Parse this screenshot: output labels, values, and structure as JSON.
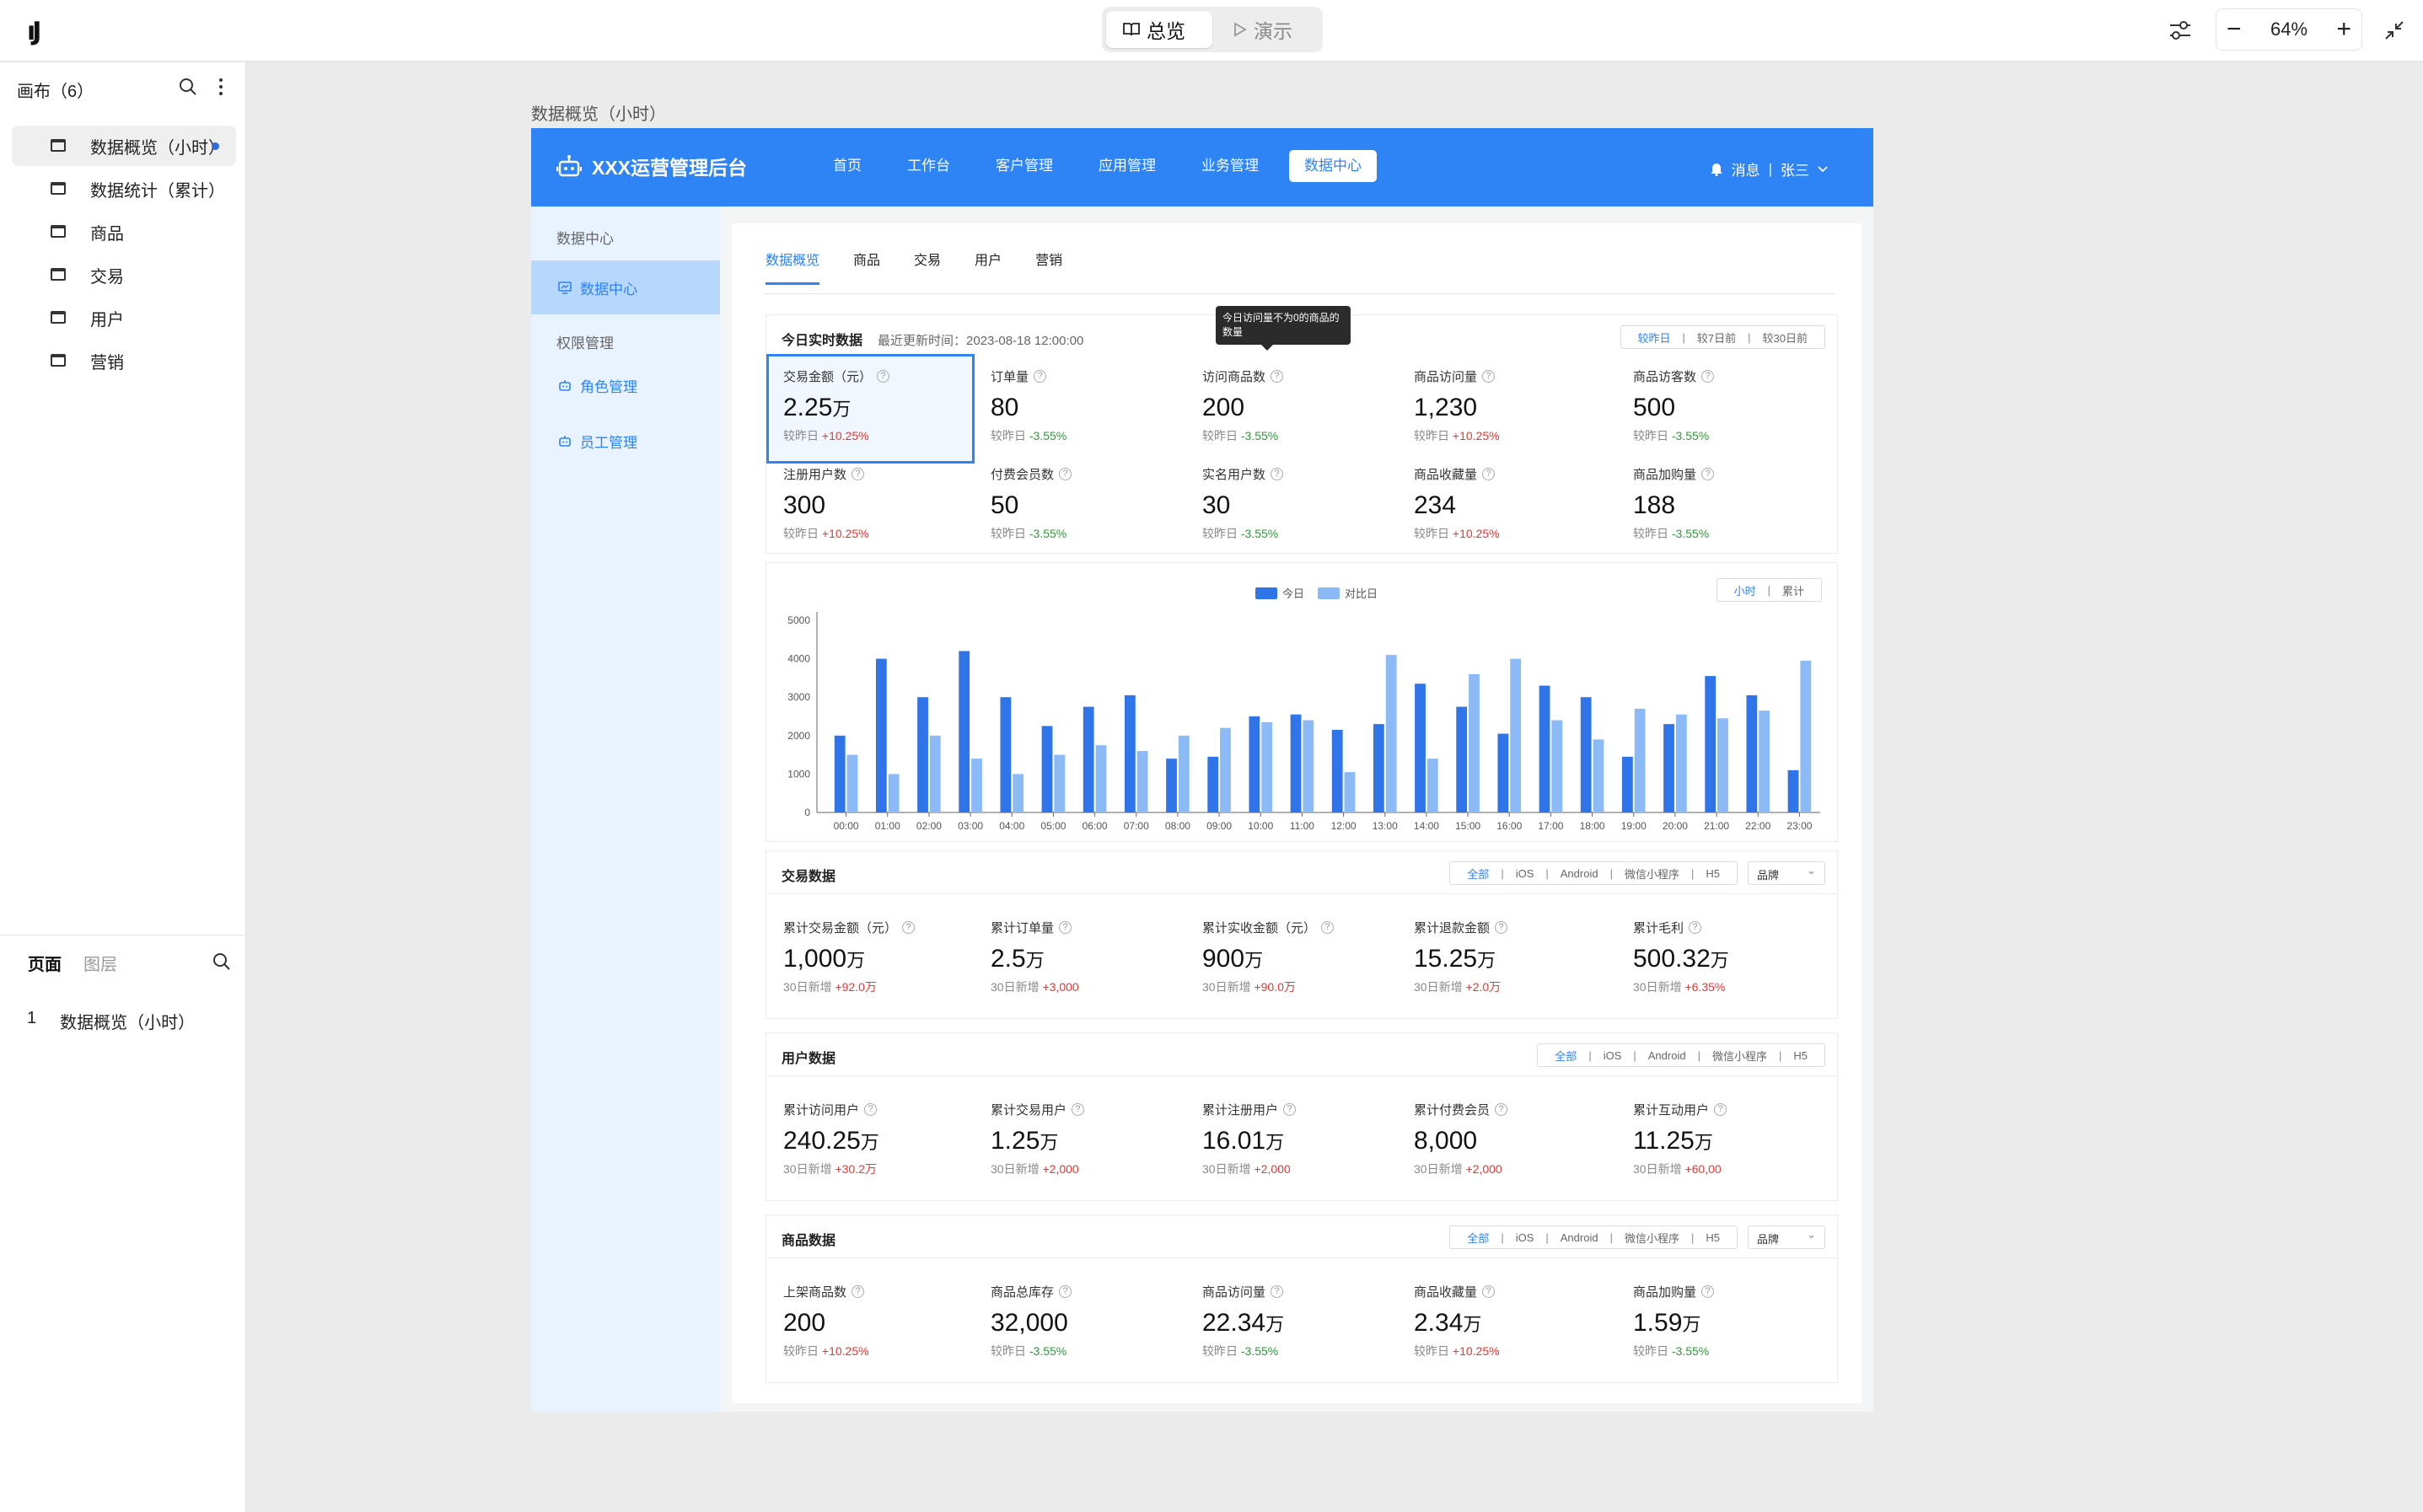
{
  "topbar": {
    "mode_overview": "总览",
    "mode_present": "演示",
    "zoom": "64%"
  },
  "leftpanel": {
    "canvas_header": "画布（6）",
    "items": [
      {
        "label": "数据概览（小时）",
        "selected": true
      },
      {
        "label": "数据统计（累计）",
        "selected": false
      },
      {
        "label": "商品",
        "selected": false
      },
      {
        "label": "交易",
        "selected": false
      },
      {
        "label": "用户",
        "selected": false
      },
      {
        "label": "营销",
        "selected": false
      }
    ],
    "tab_pages": "页面",
    "tab_layers": "图层",
    "page_index": "1",
    "page_name": "数据概览（小时）"
  },
  "frame_title": "数据概览（小时）",
  "app": {
    "title": "XXX运营管理后台",
    "nav": [
      "首页",
      "工作台",
      "客户管理",
      "应用管理",
      "业务管理",
      "数据中心"
    ],
    "messages": "消息",
    "user": "张三",
    "side": {
      "group1": "数据中心",
      "item_data_center": "数据中心",
      "group2": "权限管理",
      "item_role": "角色管理",
      "item_staff": "员工管理"
    },
    "tabs": [
      "数据概览",
      "商品",
      "交易",
      "用户",
      "营销"
    ],
    "realtime": {
      "title": "今日实时数据",
      "updated": "最近更新时间：2023-08-18 12:00:00",
      "compare_options": [
        "较昨日",
        "较7日前",
        "较30日前"
      ],
      "tooltip": "今日访问量不为0的商品的数量",
      "stats": [
        {
          "label": "交易金额（元）",
          "value": "2.25",
          "unit": "万",
          "cmp": "较昨日",
          "delta": "+10.25%",
          "dir": "up"
        },
        {
          "label": "订单量",
          "value": "80",
          "unit": "",
          "cmp": "较昨日",
          "delta": "-3.55%",
          "dir": "down"
        },
        {
          "label": "访问商品数",
          "value": "200",
          "unit": "",
          "cmp": "较昨日",
          "delta": "-3.55%",
          "dir": "down"
        },
        {
          "label": "商品访问量",
          "value": "1,230",
          "unit": "",
          "cmp": "较昨日",
          "delta": "+10.25%",
          "dir": "up"
        },
        {
          "label": "商品访客数",
          "value": "500",
          "unit": "",
          "cmp": "较昨日",
          "delta": "-3.55%",
          "dir": "down"
        },
        {
          "label": "注册用户数",
          "value": "300",
          "unit": "",
          "cmp": "较昨日",
          "delta": "+10.25%",
          "dir": "up"
        },
        {
          "label": "付费会员数",
          "value": "50",
          "unit": "",
          "cmp": "较昨日",
          "delta": "-3.55%",
          "dir": "down"
        },
        {
          "label": "实名用户数",
          "value": "30",
          "unit": "",
          "cmp": "较昨日",
          "delta": "-3.55%",
          "dir": "down"
        },
        {
          "label": "商品收藏量",
          "value": "234",
          "unit": "",
          "cmp": "较昨日",
          "delta": "+10.25%",
          "dir": "up"
        },
        {
          "label": "商品加购量",
          "value": "188",
          "unit": "",
          "cmp": "较昨日",
          "delta": "-3.55%",
          "dir": "down"
        }
      ]
    },
    "chart_toggle": [
      "小时",
      "累计"
    ],
    "trade": {
      "title": "交易数据",
      "platforms": [
        "全部",
        "iOS",
        "Android",
        "微信小程序",
        "H5"
      ],
      "brand": "品牌",
      "stats": [
        {
          "label": "累计交易金额（元）",
          "value": "1,000",
          "unit": "万",
          "cmp": "30日新增",
          "delta": "+92.0万",
          "dir": "up"
        },
        {
          "label": "累计订单量",
          "value": "2.5",
          "unit": "万",
          "cmp": "30日新增",
          "delta": "+3,000",
          "dir": "up"
        },
        {
          "label": "累计实收金额（元）",
          "value": "900",
          "unit": "万",
          "cmp": "30日新增",
          "delta": "+90.0万",
          "dir": "up"
        },
        {
          "label": "累计退款金额",
          "value": "15.25",
          "unit": "万",
          "cmp": "30日新增",
          "delta": "+2.0万",
          "dir": "up"
        },
        {
          "label": "累计毛利",
          "value": "500.32",
          "unit": "万",
          "cmp": "30日新增",
          "delta": "+6.35%",
          "dir": "up"
        }
      ]
    },
    "users": {
      "title": "用户数据",
      "platforms": [
        "全部",
        "iOS",
        "Android",
        "微信小程序",
        "H5"
      ],
      "stats": [
        {
          "label": "累计访问用户",
          "value": "240.25",
          "unit": "万",
          "cmp": "30日新增",
          "delta": "+30.2万",
          "dir": "up"
        },
        {
          "label": "累计交易用户",
          "value": "1.25",
          "unit": "万",
          "cmp": "30日新增",
          "delta": "+2,000",
          "dir": "up"
        },
        {
          "label": "累计注册用户",
          "value": "16.01",
          "unit": "万",
          "cmp": "30日新增",
          "delta": "+2,000",
          "dir": "up"
        },
        {
          "label": "累计付费会员",
          "value": "8,000",
          "unit": "",
          "cmp": "30日新增",
          "delta": "+2,000",
          "dir": "up"
        },
        {
          "label": "累计互动用户",
          "value": "11.25",
          "unit": "万",
          "cmp": "30日新增",
          "delta": "+60,00",
          "dir": "up"
        }
      ]
    },
    "goods": {
      "title": "商品数据",
      "platforms": [
        "全部",
        "iOS",
        "Android",
        "微信小程序",
        "H5"
      ],
      "brand": "品牌",
      "stats": [
        {
          "label": "上架商品数",
          "value": "200",
          "unit": "",
          "cmp": "较昨日",
          "delta": "+10.25%",
          "dir": "up"
        },
        {
          "label": "商品总库存",
          "value": "32,000",
          "unit": "",
          "cmp": "较昨日",
          "delta": "-3.55%",
          "dir": "down"
        },
        {
          "label": "商品访问量",
          "value": "22.34",
          "unit": "万",
          "cmp": "较昨日",
          "delta": "-3.55%",
          "dir": "down"
        },
        {
          "label": "商品收藏量",
          "value": "2.34",
          "unit": "万",
          "cmp": "较昨日",
          "delta": "+10.25%",
          "dir": "up"
        },
        {
          "label": "商品加购量",
          "value": "1.59",
          "unit": "万",
          "cmp": "较昨日",
          "delta": "-3.55%",
          "dir": "down"
        }
      ]
    }
  },
  "colors": {
    "primary": "#2e83f5",
    "series_today": "#2f74e8",
    "series_compare": "#8cbaf7",
    "up": "#e53935",
    "down": "#2e9a3a"
  },
  "chart_data": {
    "type": "bar",
    "categories": [
      "00:00",
      "01:00",
      "02:00",
      "03:00",
      "04:00",
      "05:00",
      "06:00",
      "07:00",
      "08:00",
      "09:00",
      "10:00",
      "11:00",
      "12:00",
      "13:00",
      "14:00",
      "15:00",
      "16:00",
      "17:00",
      "18:00",
      "19:00",
      "20:00",
      "21:00",
      "22:00",
      "23:00"
    ],
    "series": [
      {
        "name": "今日",
        "values": [
          2000,
          4000,
          3000,
          4200,
          3000,
          2250,
          2750,
          3050,
          1400,
          1450,
          2500,
          2550,
          2150,
          2300,
          3350,
          2750,
          2050,
          3300,
          3000,
          1450,
          2300,
          3550,
          3050,
          1100
        ]
      },
      {
        "name": "对比日",
        "values": [
          1500,
          1000,
          2000,
          1400,
          1000,
          1500,
          1750,
          1600,
          2000,
          2200,
          2350,
          2400,
          1050,
          4100,
          1400,
          3600,
          4000,
          2400,
          1900,
          2700,
          2550,
          2450,
          2650,
          3950
        ]
      }
    ],
    "ylim": [
      0,
      5000
    ],
    "yticks": [
      0,
      1000,
      2000,
      3000,
      4000,
      5000
    ],
    "legend": "top-center",
    "grid": false
  }
}
